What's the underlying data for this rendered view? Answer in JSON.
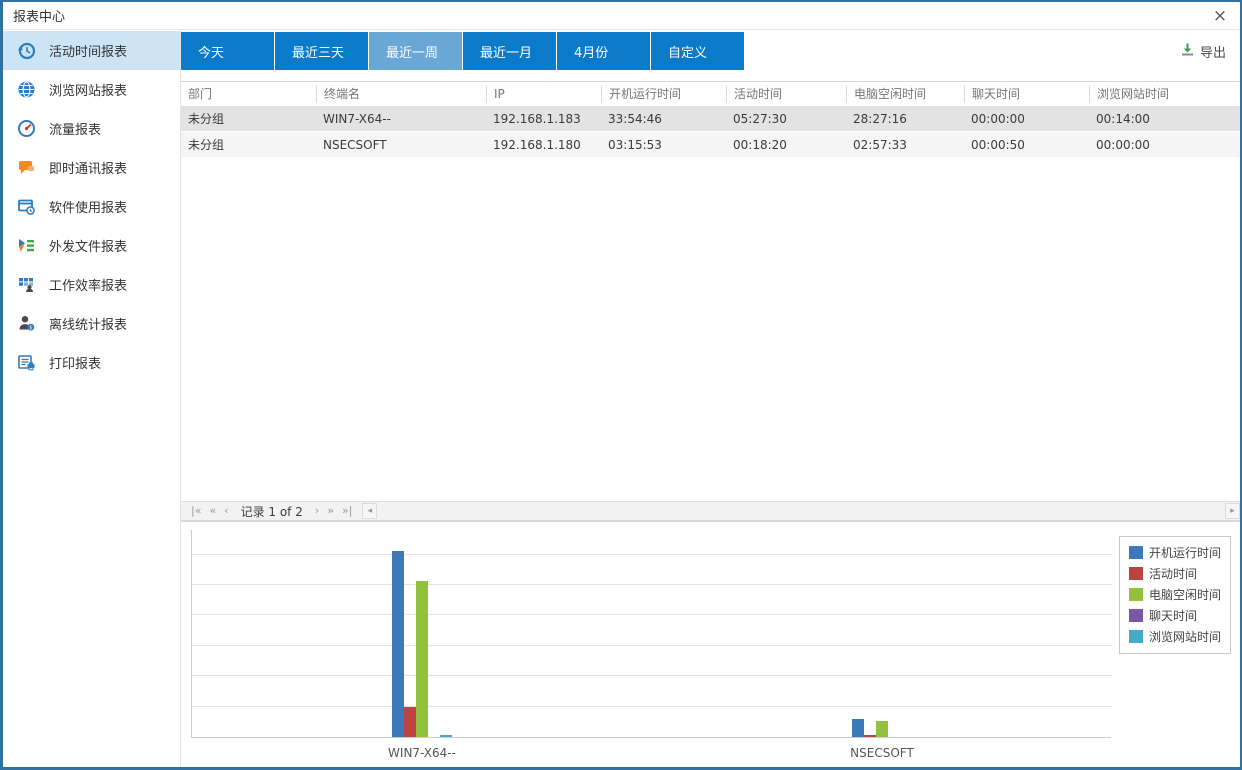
{
  "window": {
    "title": "报表中心",
    "close_glyph": "×"
  },
  "sidebar": {
    "items": [
      {
        "label": "活动时间报表",
        "icon": "history-clock-icon",
        "selected": true
      },
      {
        "label": "浏览网站报表",
        "icon": "globe-icon",
        "selected": false
      },
      {
        "label": "流量报表",
        "icon": "gauge-icon",
        "selected": false
      },
      {
        "label": "即时通讯报表",
        "icon": "chat-bubble-icon",
        "selected": false
      },
      {
        "label": "软件使用报表",
        "icon": "software-window-icon",
        "selected": false
      },
      {
        "label": "外发文件报表",
        "icon": "outgoing-file-icon",
        "selected": false
      },
      {
        "label": "工作效率报表",
        "icon": "efficiency-grid-icon",
        "selected": false
      },
      {
        "label": "离线统计报表",
        "icon": "offline-person-icon",
        "selected": false
      },
      {
        "label": "打印报表",
        "icon": "printer-icon",
        "selected": false
      }
    ]
  },
  "tabs": [
    {
      "label": "今天",
      "selected": false
    },
    {
      "label": "最近三天",
      "selected": false
    },
    {
      "label": "最近一周",
      "selected": true
    },
    {
      "label": "最近一月",
      "selected": false
    },
    {
      "label": "4月份",
      "selected": false
    },
    {
      "label": "自定义",
      "selected": false
    }
  ],
  "toolbar": {
    "export_label": "导出",
    "export_icon": "download-arrow-icon"
  },
  "table": {
    "columns": [
      "部门",
      "终端名",
      "IP",
      "开机运行时间",
      "活动时间",
      "电脑空闲时间",
      "聊天时间",
      "浏览网站时间"
    ],
    "rows": [
      {
        "cells": [
          "未分组",
          "WIN7-X64--",
          "192.168.1.183",
          "33:54:46",
          "05:27:30",
          "28:27:16",
          "00:00:00",
          "00:14:00"
        ],
        "selected": true
      },
      {
        "cells": [
          "未分组",
          "NSECSOFT",
          "192.168.1.180",
          "03:15:53",
          "00:18:20",
          "02:57:33",
          "00:00:50",
          "00:00:00"
        ],
        "selected": false
      }
    ]
  },
  "pager": {
    "first": "|«",
    "prev_page": "«",
    "prev": "‹",
    "record_text": "记录 1 of 2",
    "next": "›",
    "next_page": "»",
    "last": "»|",
    "scroll_left": "◂",
    "scroll_right": "▸"
  },
  "chart_data": {
    "type": "bar",
    "categories": [
      "WIN7-X64--",
      "NSECSOFT"
    ],
    "series": [
      {
        "name": "开机运行时间",
        "color": "#3b79b8",
        "values": [
          33.91,
          3.27
        ]
      },
      {
        "name": "活动时间",
        "color": "#bd4242",
        "values": [
          5.46,
          0.31
        ]
      },
      {
        "name": "电脑空闲时间",
        "color": "#92c13e",
        "values": [
          28.45,
          2.96
        ]
      },
      {
        "name": "聊天时间",
        "color": "#7a57a6",
        "values": [
          0,
          0.01
        ]
      },
      {
        "name": "浏览网站时间",
        "color": "#45abc6",
        "values": [
          0.23,
          0
        ]
      }
    ],
    "title": "",
    "xlabel": "",
    "ylabel": "",
    "ylim": [
      0,
      38
    ],
    "grid": true,
    "gridline_step_hours": 5.5,
    "legend_position": "top-right",
    "units": "hours"
  },
  "colors": {
    "accent_blue": "#0b7ac8",
    "tab_selected": "#68a7d6",
    "sidebar_selected": "#cde4f6",
    "window_border": "#2f72a2",
    "row_selected": "#e3e3e3",
    "export_green": "#3d9e52"
  }
}
